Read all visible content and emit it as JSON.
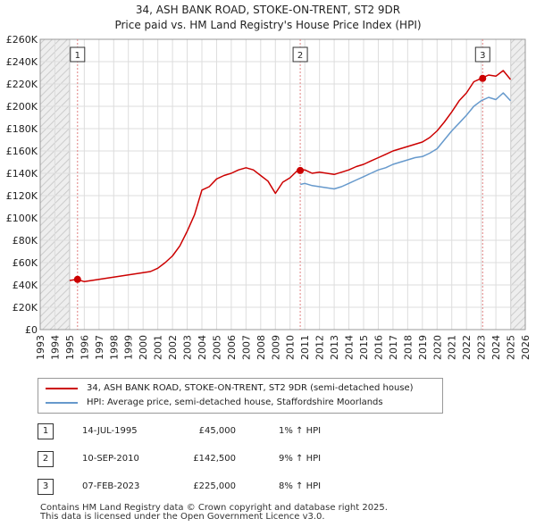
{
  "chart_data": {
    "type": "line",
    "title": "34, ASH BANK ROAD, STOKE-ON-TRENT, ST2 9DR",
    "subtitle": "Price paid vs. HM Land Registry's House Price Index (HPI)",
    "xlim": [
      1993,
      2026
    ],
    "ylim": [
      0,
      260000
    ],
    "y_ticks": [
      0,
      20000,
      40000,
      60000,
      80000,
      100000,
      120000,
      140000,
      160000,
      180000,
      200000,
      220000,
      240000,
      260000
    ],
    "y_tick_labels": [
      "£0",
      "£20K",
      "£40K",
      "£60K",
      "£80K",
      "£100K",
      "£120K",
      "£140K",
      "£160K",
      "£180K",
      "£200K",
      "£220K",
      "£240K",
      "£260K"
    ],
    "x_ticks": [
      1993,
      1994,
      1995,
      1996,
      1997,
      1998,
      1999,
      2000,
      2001,
      2002,
      2003,
      2004,
      2005,
      2006,
      2007,
      2008,
      2009,
      2010,
      2011,
      2012,
      2013,
      2014,
      2015,
      2016,
      2017,
      2018,
      2019,
      2020,
      2021,
      2022,
      2023,
      2024,
      2025,
      2026
    ],
    "x_tick_labels": [
      "1993",
      "1994",
      "1995",
      "1996",
      "1997",
      "1998",
      "1999",
      "2000",
      "2001",
      "2002",
      "2003",
      "2004",
      "2005",
      "2006",
      "2007",
      "2008",
      "2009",
      "2010",
      "2011",
      "2012",
      "2013",
      "2014",
      "2015",
      "2016",
      "2017",
      "2018",
      "2019",
      "2020",
      "2021",
      "2022",
      "2023",
      "2024",
      "2025",
      "2026"
    ],
    "data_range": [
      1995.0,
      2025.0
    ],
    "series": [
      {
        "name": "34, ASH BANK ROAD, STOKE-ON-TRENT, ST2 9DR (semi-detached house)",
        "color": "#cc0000",
        "x": [
          1995.0,
          1995.5,
          1996.0,
          1996.5,
          1997.0,
          1997.5,
          1998.0,
          1998.5,
          1999.0,
          1999.5,
          2000.0,
          2000.5,
          2001.0,
          2001.5,
          2002.0,
          2002.5,
          2003.0,
          2003.5,
          2004.0,
          2004.5,
          2005.0,
          2005.5,
          2006.0,
          2006.5,
          2007.0,
          2007.5,
          2008.0,
          2008.5,
          2009.0,
          2009.5,
          2010.0,
          2010.5,
          2011.0,
          2011.5,
          2012.0,
          2012.5,
          2013.0,
          2013.5,
          2014.0,
          2014.5,
          2015.0,
          2015.5,
          2016.0,
          2016.5,
          2017.0,
          2017.5,
          2018.0,
          2018.5,
          2019.0,
          2019.5,
          2020.0,
          2020.5,
          2021.0,
          2021.5,
          2022.0,
          2022.5,
          2023.0,
          2023.5,
          2024.0,
          2024.5,
          2025.0
        ],
        "values": [
          44000,
          45000,
          43000,
          44000,
          45000,
          46000,
          47000,
          48000,
          49000,
          50000,
          51000,
          52000,
          55000,
          60000,
          66000,
          75000,
          88000,
          103000,
          125000,
          128000,
          135000,
          138000,
          140000,
          143000,
          145000,
          143000,
          138000,
          133000,
          122000,
          132000,
          136000,
          142500,
          143000,
          140000,
          141000,
          140000,
          139000,
          141000,
          143000,
          146000,
          148000,
          151000,
          154000,
          157000,
          160000,
          162000,
          164000,
          166000,
          168000,
          172000,
          178000,
          186000,
          195000,
          205000,
          212000,
          222000,
          225000,
          228000,
          227000,
          232000,
          224000
        ]
      },
      {
        "name": "HPI: Average price, semi-detached house, Staffordshire Moorlands",
        "color": "#6699cc",
        "x": [
          2010.7,
          2011.0,
          2011.5,
          2012.0,
          2012.5,
          2013.0,
          2013.5,
          2014.0,
          2014.5,
          2015.0,
          2015.5,
          2016.0,
          2016.5,
          2017.0,
          2017.5,
          2018.0,
          2018.5,
          2019.0,
          2019.5,
          2020.0,
          2020.5,
          2021.0,
          2021.5,
          2022.0,
          2022.5,
          2023.0,
          2023.5,
          2024.0,
          2024.5,
          2025.0
        ],
        "values": [
          130000,
          131000,
          129000,
          128000,
          127000,
          126000,
          128000,
          131000,
          134000,
          137000,
          140000,
          143000,
          145000,
          148000,
          150000,
          152000,
          154000,
          155000,
          158000,
          162000,
          170000,
          178000,
          185000,
          192000,
          200000,
          205000,
          208000,
          206000,
          212000,
          205000
        ]
      }
    ],
    "sales": [
      {
        "label": "1",
        "x": 1995.54,
        "value": 45000
      },
      {
        "label": "2",
        "x": 2010.69,
        "value": 142500
      },
      {
        "label": "3",
        "x": 2023.1,
        "value": 225000
      }
    ]
  },
  "legend": {
    "items": [
      {
        "label": "34, ASH BANK ROAD, STOKE-ON-TRENT, ST2 9DR (semi-detached house)",
        "color": "#cc0000"
      },
      {
        "label": "HPI: Average price, semi-detached house, Staffordshire Moorlands",
        "color": "#6699cc"
      }
    ]
  },
  "transactions": [
    {
      "num": "1",
      "date": "14-JUL-1995",
      "price": "£45,000",
      "hpi": "1% ↑ HPI"
    },
    {
      "num": "2",
      "date": "10-SEP-2010",
      "price": "£142,500",
      "hpi": "9% ↑ HPI"
    },
    {
      "num": "3",
      "date": "07-FEB-2023",
      "price": "£225,000",
      "hpi": "8% ↑ HPI"
    }
  ],
  "footer": {
    "line1": "Contains HM Land Registry data © Crown copyright and database right 2025.",
    "line2": "This data is licensed under the Open Government Licence v3.0."
  }
}
